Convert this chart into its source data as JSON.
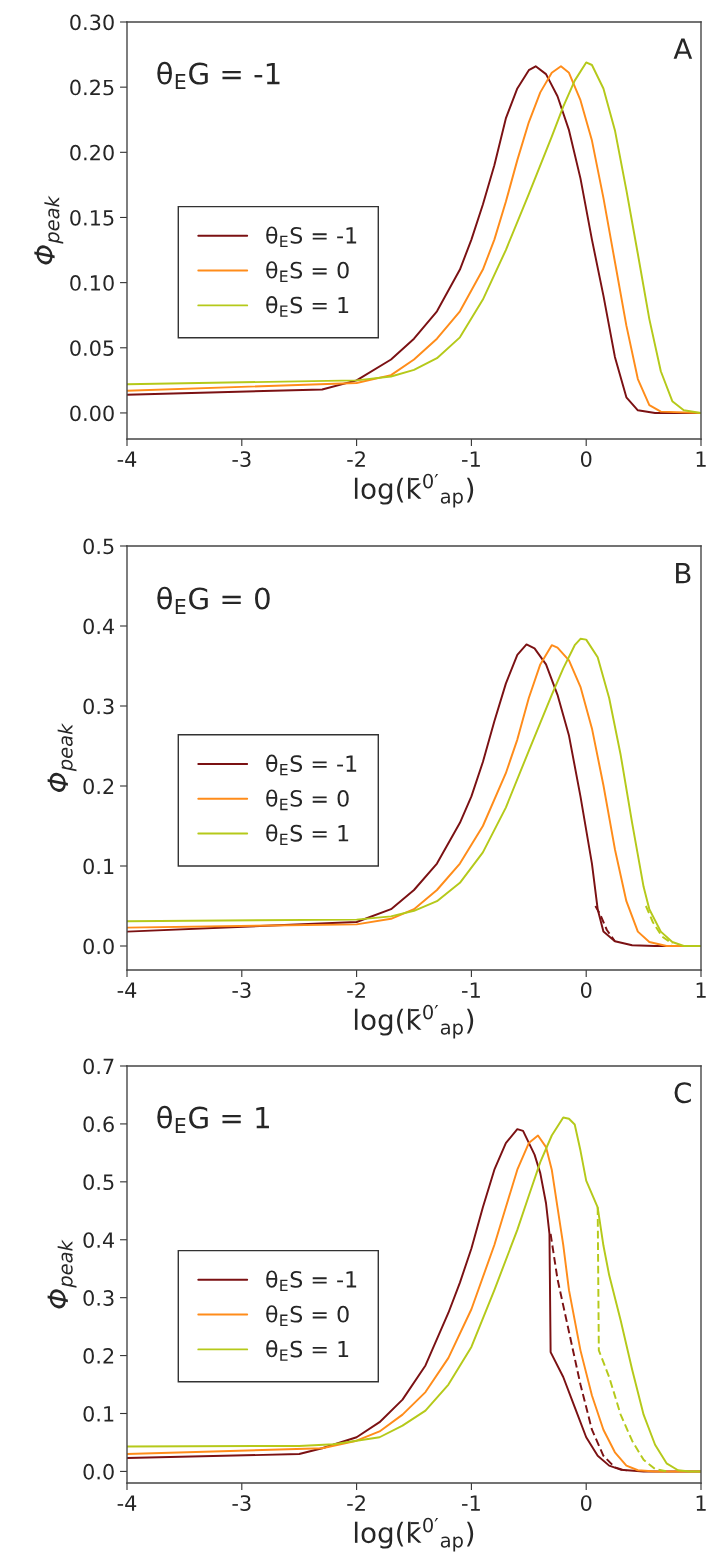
{
  "chart_data": [
    {
      "type": "line",
      "ylabel": "Φ$_{peak}$",
      "xlabel": "log(k̄$^{0′}$$_{ap}$)",
      "annotations": [
        "θ$_{E}$G = -1",
        "A"
      ],
      "xlim": [
        -4,
        1
      ],
      "xticks": [
        -4,
        -3,
        -2,
        -1,
        0,
        1
      ],
      "ylim": [
        -0.02,
        0.3
      ],
      "yticks": [
        {
          "value": 0,
          "label": "0.00"
        },
        {
          "value": 0.05,
          "label": "0.05"
        },
        {
          "value": 0.1,
          "label": "0.10"
        },
        {
          "value": 0.15,
          "label": "0.15"
        },
        {
          "value": 0.2,
          "label": "0.20"
        },
        {
          "value": 0.25,
          "label": "0.25"
        },
        {
          "value": 0.3,
          "label": "0.30"
        }
      ],
      "legend": "left",
      "grid": false,
      "line_style": "solid",
      "series": [
        {
          "name": "θ$_{E}$S = -1",
          "color": "#7b1113",
          "x": [
            -4,
            -2.3,
            -2,
            -1.7,
            -1.5,
            -1.3,
            -1.1,
            -1,
            -0.9,
            -0.8,
            -0.7,
            -0.6,
            -0.5,
            -0.44,
            -0.35,
            -0.25,
            -0.15,
            -0.05,
            0.05,
            0.15,
            0.25,
            0.35,
            0.45,
            0.6,
            1
          ],
          "values": [
            0.014,
            0.018,
            0.025,
            0.041,
            0.057,
            0.078,
            0.11,
            0.133,
            0.16,
            0.19,
            0.226,
            0.249,
            0.263,
            0.266,
            0.26,
            0.243,
            0.217,
            0.18,
            0.133,
            0.09,
            0.043,
            0.012,
            0.002,
            0,
            0
          ]
        },
        {
          "name": "θ$_{E}$S = 0",
          "color": "#ff8c1a",
          "x": [
            -4,
            -2,
            -1.7,
            -1.5,
            -1.3,
            -1.1,
            -0.9,
            -0.8,
            -0.7,
            -0.6,
            -0.5,
            -0.4,
            -0.3,
            -0.22,
            -0.15,
            -0.05,
            0.05,
            0.15,
            0.25,
            0.35,
            0.45,
            0.55,
            0.65,
            1
          ],
          "values": [
            0.017,
            0.023,
            0.029,
            0.041,
            0.057,
            0.078,
            0.11,
            0.133,
            0.162,
            0.194,
            0.223,
            0.246,
            0.261,
            0.266,
            0.261,
            0.24,
            0.209,
            0.165,
            0.116,
            0.067,
            0.026,
            0.006,
            0.001,
            0
          ]
        },
        {
          "name": "θ$_{E}$S = 1",
          "color": "#b5c91a",
          "x": [
            -4,
            -2,
            -1.7,
            -1.5,
            -1.3,
            -1.1,
            -0.9,
            -0.7,
            -0.5,
            -0.3,
            -0.2,
            -0.1,
            0,
            0.05,
            0.15,
            0.25,
            0.35,
            0.45,
            0.55,
            0.65,
            0.75,
            0.85,
            1
          ],
          "values": [
            0.022,
            0.025,
            0.028,
            0.033,
            0.042,
            0.058,
            0.087,
            0.125,
            0.168,
            0.212,
            0.235,
            0.255,
            0.269,
            0.267,
            0.249,
            0.217,
            0.171,
            0.122,
            0.072,
            0.032,
            0.009,
            0.002,
            0
          ]
        }
      ]
    },
    {
      "type": "line",
      "ylabel": "Φ$_{peak}$",
      "xlabel": "log(k̄$^{0′}$$_{ap}$)",
      "annotations": [
        "θ$_{E}$G = 0",
        "B"
      ],
      "xlim": [
        -4,
        1
      ],
      "xticks": [
        -4,
        -3,
        -2,
        -1,
        0,
        1
      ],
      "ylim": [
        -0.03,
        0.5
      ],
      "yticks": [
        {
          "value": 0,
          "label": "0.0"
        },
        0.1,
        0.2,
        0.3,
        0.4,
        0.5
      ],
      "legend": "left",
      "grid": false,
      "line_style": "solid",
      "series": [
        {
          "name": "θ$_{E}$S = -1",
          "color": "#7b1113",
          "x": [
            -4,
            -2,
            -1.7,
            -1.5,
            -1.3,
            -1.1,
            -1,
            -0.9,
            -0.8,
            -0.7,
            -0.6,
            -0.52,
            -0.45,
            -0.35,
            -0.25,
            -0.15,
            -0.05,
            0.05,
            0.1,
            0.15,
            0.25,
            0.4,
            0.6,
            1
          ],
          "values": [
            0.018,
            0.03,
            0.046,
            0.07,
            0.103,
            0.154,
            0.187,
            0.23,
            0.281,
            0.328,
            0.364,
            0.377,
            0.372,
            0.352,
            0.314,
            0.263,
            0.187,
            0.103,
            0.046,
            0.018,
            0.006,
            0.001,
            0,
            0
          ]
        },
        {
          "name": "θ$_{E}$S = 0",
          "color": "#ff8c1a",
          "x": [
            -4,
            -2,
            -1.7,
            -1.5,
            -1.3,
            -1.1,
            -0.9,
            -0.7,
            -0.6,
            -0.5,
            -0.4,
            -0.3,
            -0.25,
            -0.15,
            -0.05,
            0.05,
            0.15,
            0.25,
            0.35,
            0.45,
            0.55,
            0.7,
            1
          ],
          "values": [
            0.023,
            0.027,
            0.034,
            0.046,
            0.07,
            0.103,
            0.15,
            0.216,
            0.258,
            0.31,
            0.352,
            0.376,
            0.373,
            0.357,
            0.324,
            0.272,
            0.201,
            0.121,
            0.056,
            0.018,
            0.005,
            0,
            0
          ]
        },
        {
          "name": "θ$_{E}$S = 1",
          "color": "#b5c91a",
          "x": [
            -4,
            -2,
            -1.7,
            -1.5,
            -1.3,
            -1.1,
            -0.9,
            -0.7,
            -0.5,
            -0.3,
            -0.2,
            -0.1,
            -0.05,
            0,
            0.1,
            0.2,
            0.3,
            0.4,
            0.5,
            0.55,
            0.65,
            0.75,
            0.85,
            1
          ],
          "values": [
            0.031,
            0.033,
            0.037,
            0.044,
            0.056,
            0.079,
            0.117,
            0.173,
            0.244,
            0.314,
            0.347,
            0.376,
            0.384,
            0.383,
            0.361,
            0.31,
            0.239,
            0.154,
            0.074,
            0.046,
            0.018,
            0.005,
            0,
            0
          ]
        },
        {
          "color": "#7b1113",
          "line_style": "dashed",
          "x": [
            0.08,
            0.12,
            0.18,
            0.25
          ],
          "values": [
            0.05,
            0.04,
            0.02,
            0.006
          ]
        },
        {
          "color": "#b5c91a",
          "line_style": "dashed",
          "x": [
            0.52,
            0.58,
            0.66,
            0.75
          ],
          "values": [
            0.05,
            0.03,
            0.012,
            0.003
          ]
        }
      ]
    },
    {
      "type": "line",
      "ylabel": "Φ$_{peak}$",
      "xlabel": "log(k̄$^{0′}$$_{ap}$)",
      "annotations": [
        "θ$_{E}$G = 1",
        "C"
      ],
      "xlim": [
        -4,
        1
      ],
      "xticks": [
        -4,
        -3,
        -2,
        -1,
        0,
        1
      ],
      "ylim": [
        -0.02,
        0.7
      ],
      "yticks": [
        {
          "value": 0,
          "label": "0.0"
        },
        0.1,
        0.2,
        0.3,
        0.4,
        0.5,
        0.6,
        0.7
      ],
      "legend": "left",
      "grid": false,
      "line_style": "solid",
      "series": [
        {
          "name": "θ$_{E}$S = -1",
          "color": "#7b1113",
          "x": [
            -4,
            -2.5,
            -2.3,
            -2,
            -1.8,
            -1.6,
            -1.4,
            -1.2,
            -1.1,
            -1,
            -0.9,
            -0.8,
            -0.7,
            -0.6,
            -0.55,
            -0.45,
            -0.4,
            -0.35,
            -0.32,
            -0.31,
            -0.2,
            -0.1,
            0,
            0.1,
            0.2,
            0.3,
            0.5,
            1
          ],
          "values": [
            0.023,
            0.03,
            0.04,
            0.059,
            0.085,
            0.124,
            0.183,
            0.274,
            0.326,
            0.385,
            0.456,
            0.521,
            0.567,
            0.591,
            0.588,
            0.547,
            0.515,
            0.463,
            0.41,
            0.206,
            0.163,
            0.111,
            0.059,
            0.027,
            0.01,
            0.003,
            0,
            0
          ]
        },
        {
          "name": "θ$_{E}$S = 0",
          "color": "#ff8c1a",
          "x": [
            -4,
            -2.3,
            -2,
            -1.8,
            -1.6,
            -1.4,
            -1.2,
            -1,
            -0.8,
            -0.7,
            -0.6,
            -0.5,
            -0.42,
            -0.35,
            -0.3,
            -0.25,
            -0.2,
            -0.15,
            -0.05,
            0.05,
            0.15,
            0.25,
            0.35,
            0.45,
            0.6,
            1
          ],
          "values": [
            0.03,
            0.04,
            0.053,
            0.069,
            0.098,
            0.137,
            0.196,
            0.28,
            0.391,
            0.456,
            0.521,
            0.567,
            0.58,
            0.56,
            0.521,
            0.456,
            0.391,
            0.313,
            0.209,
            0.131,
            0.072,
            0.033,
            0.01,
            0.002,
            0,
            0
          ]
        },
        {
          "name": "θ$_{E}$S = 1",
          "color": "#b5c91a",
          "x": [
            -4,
            -2.5,
            -2.2,
            -2,
            -1.8,
            -1.6,
            -1.4,
            -1.2,
            -1,
            -0.8,
            -0.6,
            -0.5,
            -0.4,
            -0.3,
            -0.2,
            -0.15,
            -0.1,
            -0.05,
            0,
            0.1,
            0.15,
            0.2,
            0.3,
            0.4,
            0.5,
            0.6,
            0.7,
            0.8,
            0.9,
            1
          ],
          "values": [
            0.043,
            0.044,
            0.047,
            0.053,
            0.059,
            0.079,
            0.105,
            0.15,
            0.215,
            0.313,
            0.417,
            0.476,
            0.534,
            0.58,
            0.611,
            0.609,
            0.599,
            0.554,
            0.502,
            0.456,
            0.39,
            0.339,
            0.261,
            0.176,
            0.098,
            0.046,
            0.014,
            0.002,
            0,
            0
          ]
        },
        {
          "color": "#7b1113",
          "line_style": "dashed",
          "x": [
            -0.31,
            -0.25,
            -0.15,
            -0.05,
            0.05,
            0.15,
            0.25,
            0.35
          ],
          "values": [
            0.41,
            0.332,
            0.241,
            0.15,
            0.072,
            0.027,
            0.007,
            0.001
          ]
        },
        {
          "color": "#b5c91a",
          "line_style": "dashed",
          "x": [
            0.1,
            0.11,
            0.2,
            0.3,
            0.4,
            0.5,
            0.6,
            0.7
          ],
          "values": [
            0.456,
            0.209,
            0.163,
            0.098,
            0.053,
            0.02,
            0.004,
            0
          ]
        }
      ]
    }
  ]
}
